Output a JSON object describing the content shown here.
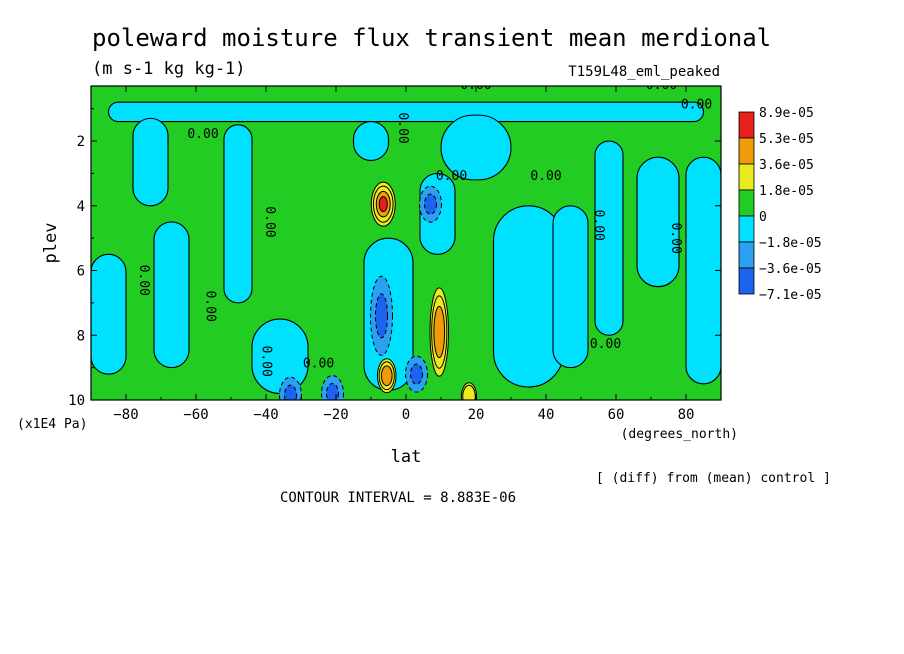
{
  "chart_data": {
    "type": "heatmap",
    "title": "poleward moisture flux transient mean merdional",
    "units": "(m s-1 kg kg-1)",
    "experiment": "T159L48_eml_peaked",
    "xlabel": "lat",
    "xunits": "(degrees_north)",
    "ylabel": "plev",
    "yunits": "(x1E4 Pa)",
    "xlim": [
      -90,
      90
    ],
    "ylim": [
      10,
      0.3
    ],
    "x_ticks": [
      -80,
      -60,
      -40,
      -20,
      0,
      20,
      40,
      60,
      80
    ],
    "x_tick_labels": [
      "−80",
      "−60",
      "−40",
      "−20",
      "0",
      "20",
      "40",
      "60",
      "80"
    ],
    "y_ticks": [
      2,
      4,
      6,
      8,
      10
    ],
    "y_tick_labels": [
      "2",
      "4",
      "6",
      "8",
      "10"
    ],
    "contour_interval_text": "CONTOUR INTERVAL = 8.883E-06",
    "comparison_note": "[ (diff) from (mean) control ]",
    "zero_contour_label": "0.00",
    "legend": {
      "placement": "right",
      "levels": [
        {
          "label": "8.9e-05",
          "color": "#e8201c"
        },
        {
          "label": "5.3e-05",
          "color": "#f09a0c"
        },
        {
          "label": "3.6e-05",
          "color": "#eaea20"
        },
        {
          "label": "1.8e-05",
          "color": "#22cc22"
        },
        {
          "label": "0",
          "color": "#00e0ff"
        },
        {
          "label": "−1.8e-05",
          "color": "#2aa0f0"
        },
        {
          "label": "−3.6e-05",
          "color": "#1c64f0"
        },
        {
          "label": "−7.1e-05",
          "color": null
        }
      ]
    },
    "fields": {
      "negative_regions": [
        {
          "lat": [
            -85,
            85
          ],
          "plev": [
            0.8,
            1.4
          ]
        },
        {
          "lat": [
            -78,
            -68
          ],
          "plev": [
            1.3,
            4.0
          ]
        },
        {
          "lat": [
            -90,
            -80
          ],
          "plev": [
            5.5,
            9.2
          ]
        },
        {
          "lat": [
            -72,
            -62
          ],
          "plev": [
            4.5,
            9.0
          ]
        },
        {
          "lat": [
            -52,
            -44
          ],
          "plev": [
            1.5,
            7.0
          ]
        },
        {
          "lat": [
            -44,
            -28
          ],
          "plev": [
            7.5,
            9.8
          ]
        },
        {
          "lat": [
            -15,
            -5
          ],
          "plev": [
            1.4,
            2.6
          ]
        },
        {
          "lat": [
            -12,
            2
          ],
          "plev": [
            5.0,
            9.7
          ]
        },
        {
          "lat": [
            4,
            14
          ],
          "plev": [
            3.0,
            5.5
          ]
        },
        {
          "lat": [
            10,
            30
          ],
          "plev": [
            1.2,
            3.2
          ]
        },
        {
          "lat": [
            25,
            45
          ],
          "plev": [
            4.0,
            9.6
          ]
        },
        {
          "lat": [
            42,
            52
          ],
          "plev": [
            4.0,
            9.0
          ]
        },
        {
          "lat": [
            54,
            62
          ],
          "plev": [
            2.0,
            8.0
          ]
        },
        {
          "lat": [
            66,
            78
          ],
          "plev": [
            2.5,
            6.5
          ]
        },
        {
          "lat": [
            80,
            90
          ],
          "plev": [
            2.5,
            9.5
          ]
        }
      ],
      "positive_maxima": [
        {
          "lat": -6.5,
          "plev": 3.95,
          "value": 8.9e-05
        },
        {
          "lat": 9.5,
          "plev": 7.9,
          "value": 5.3e-05
        },
        {
          "lat": -5.5,
          "plev": 9.25,
          "value": 5.3e-05
        },
        {
          "lat": 18,
          "plev": 9.9,
          "value": 3.6e-05
        }
      ],
      "negative_minima": [
        {
          "lat": 7,
          "plev": 3.95,
          "value": -3.6e-05
        },
        {
          "lat": -7,
          "plev": 7.4,
          "value": -3.6e-05
        },
        {
          "lat": 3,
          "plev": 9.2,
          "value": -3.6e-05
        },
        {
          "lat": -33,
          "plev": 9.85,
          "value": -3.6e-05
        },
        {
          "lat": -21,
          "plev": 9.8,
          "value": -3.6e-05
        }
      ]
    }
  }
}
